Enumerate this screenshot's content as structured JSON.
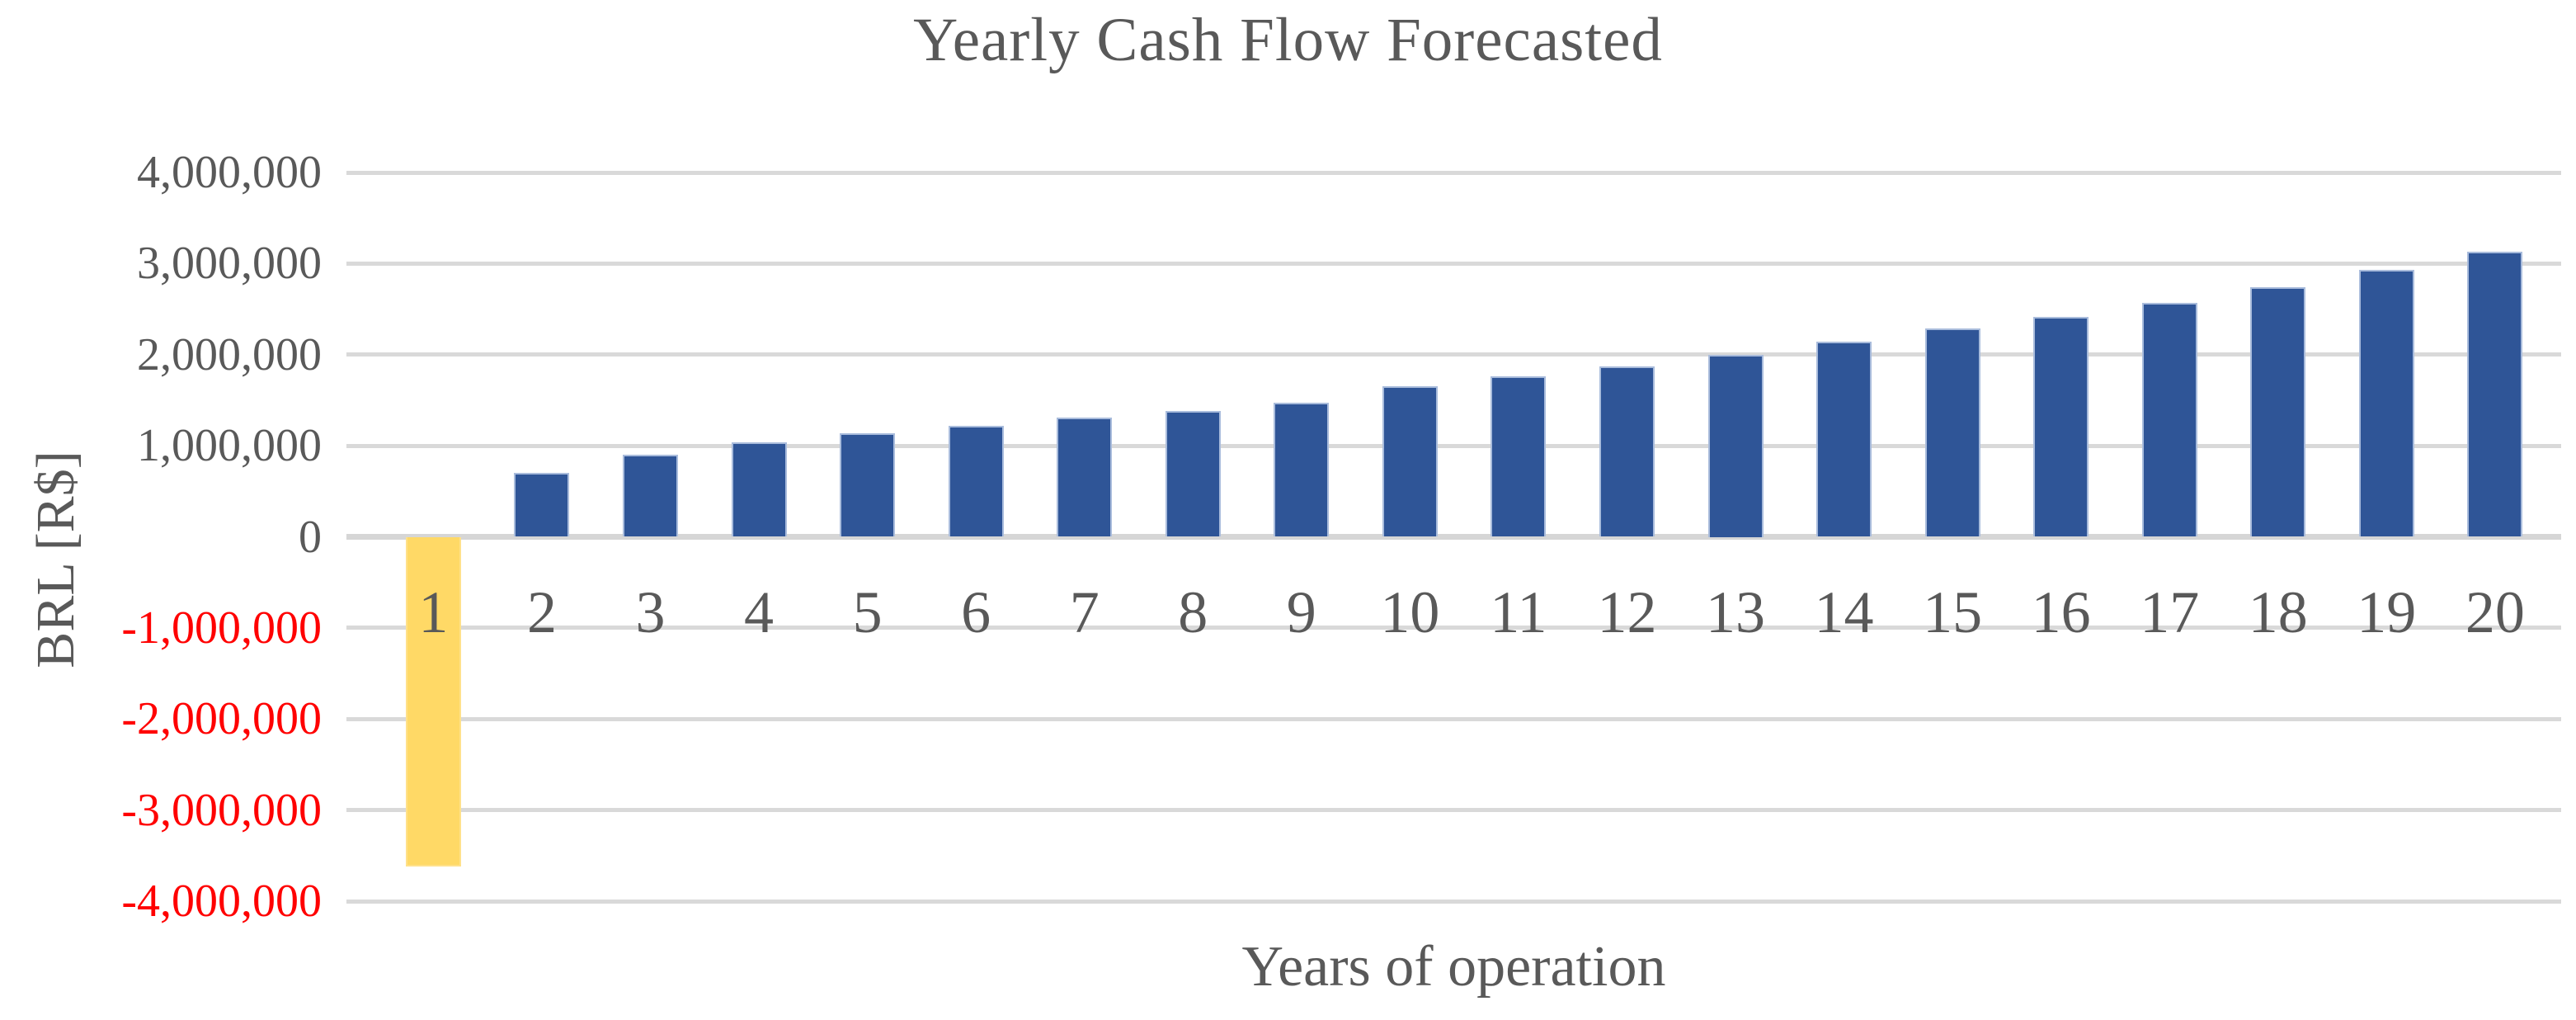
{
  "title": "Yearly Cash Flow Forecasted",
  "colors": {
    "bar_positive_fill": "#2f5597",
    "bar_positive_border": "#a9bcdc",
    "bar_negative_fill": "#ffd966",
    "bar_negative_border": "#ffe18a",
    "gridline": "#d9d9d9",
    "zero_line": "#d6d6d6",
    "text_gray": "#595959",
    "negative_tick_text": "#ff0000"
  },
  "chart_data": {
    "type": "bar",
    "title": "Yearly Cash Flow Forecasted",
    "xlabel": "Years of operation",
    "ylabel": "BRL [R$]",
    "categories": [
      "1",
      "2",
      "3",
      "4",
      "5",
      "6",
      "7",
      "8",
      "9",
      "10",
      "11",
      "12",
      "13",
      "14",
      "15",
      "16",
      "17",
      "18",
      "19",
      "20"
    ],
    "values": [
      -3620000,
      700000,
      900000,
      1040000,
      1140000,
      1220000,
      1310000,
      1380000,
      1470000,
      1650000,
      1760000,
      1870000,
      2000000,
      2140000,
      2290000,
      2410000,
      2570000,
      2740000,
      2930000,
      3130000
    ],
    "ylim": [
      -4000000,
      4000000
    ],
    "y_tick_step": 1000000,
    "y_tick_labels": [
      "4,000,000",
      "3,000,000",
      "2,000,000",
      "1,000,000",
      "0",
      "-1,000,000",
      "-2,000,000",
      "-3,000,000",
      "-4,000,000"
    ],
    "grid": "horizontal",
    "legend": "none",
    "negative_bar_color_note": "year 1 bar is yellow, all positive bars are dark blue"
  }
}
